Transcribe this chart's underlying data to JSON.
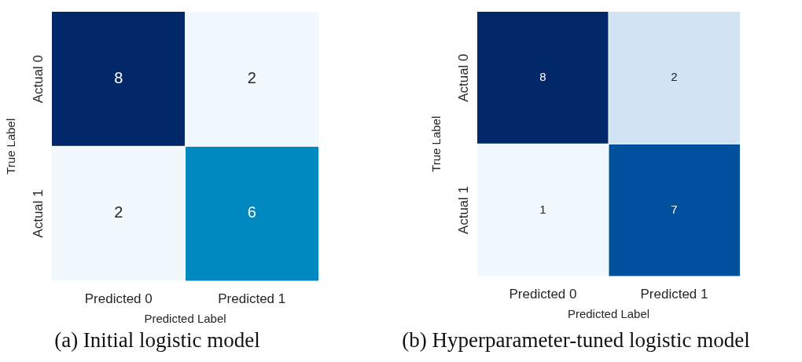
{
  "chart_data": [
    {
      "type": "heatmap",
      "xlabel": "Predicted Label",
      "ylabel": "True Label",
      "categories": [
        "Predicted 0",
        "Predicted 1"
      ],
      "y_categories": [
        "Actual 0",
        "Actual 1"
      ],
      "cells": [
        [
          8,
          2
        ],
        [
          2,
          6
        ]
      ],
      "colors": [
        [
          "#03286a",
          "#f1f8fe"
        ],
        [
          "#f1f8fe",
          "#0088c0"
        ]
      ],
      "data_labels": true,
      "annotations": [
        "(a) Initial logistic model"
      ]
    },
    {
      "type": "heatmap",
      "xlabel": "Predicted Label",
      "ylabel": "True Label",
      "categories": [
        "Predicted 0",
        "Predicted 1"
      ],
      "y_categories": [
        "Actual 0",
        "Actual 1"
      ],
      "cells": [
        [
          8,
          2
        ],
        [
          1,
          7
        ]
      ],
      "colors": [
        [
          "#03286a",
          "#d0e4f3"
        ],
        [
          "#f1f8fe",
          "#00519d"
        ]
      ],
      "data_labels": true,
      "annotations": [
        "(b) Hyperparameter-tuned logistic model"
      ]
    }
  ]
}
